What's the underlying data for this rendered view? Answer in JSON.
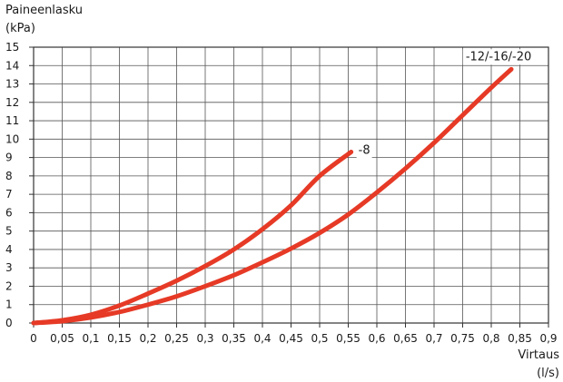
{
  "chart_data": {
    "type": "line",
    "ylabel_lines": [
      "Paineenlasku",
      "(kPa)"
    ],
    "xlabel_lines": [
      "Virtaus",
      "(l/s)"
    ],
    "xlim": [
      0,
      0.9
    ],
    "ylim": [
      0,
      15
    ],
    "x_ticks": [
      "0",
      "0,05",
      "0,1",
      "0,15",
      "0,2",
      "0,25",
      "0,3",
      "0,35",
      "0,4",
      "0,45",
      "0,5",
      "0,55",
      "0,6",
      "0,65",
      "0,7",
      "0,75",
      "0,8",
      "0,85",
      "0,9"
    ],
    "x_tick_values": [
      0,
      0.05,
      0.1,
      0.15,
      0.2,
      0.25,
      0.3,
      0.35,
      0.4,
      0.45,
      0.5,
      0.55,
      0.6,
      0.65,
      0.7,
      0.75,
      0.8,
      0.85,
      0.9
    ],
    "y_ticks": [
      "0",
      "1",
      "2",
      "3",
      "4",
      "5",
      "6",
      "7",
      "8",
      "9",
      "10",
      "11",
      "12",
      "13",
      "14",
      "15"
    ],
    "y_tick_values": [
      0,
      1,
      2,
      3,
      4,
      5,
      6,
      7,
      8,
      9,
      10,
      11,
      12,
      13,
      14,
      15
    ],
    "grid": true,
    "series": [
      {
        "name": "-8",
        "color": "#e63a26",
        "x": [
          0,
          0.05,
          0.1,
          0.15,
          0.2,
          0.25,
          0.3,
          0.35,
          0.4,
          0.45,
          0.5,
          0.555
        ],
        "y": [
          0,
          0.15,
          0.45,
          0.95,
          1.6,
          2.3,
          3.1,
          4.0,
          5.1,
          6.4,
          8.0,
          9.3
        ]
      },
      {
        "name": "-12/-16/-20",
        "color": "#e63a26",
        "x": [
          0,
          0.05,
          0.1,
          0.15,
          0.2,
          0.25,
          0.3,
          0.35,
          0.4,
          0.45,
          0.5,
          0.55,
          0.6,
          0.65,
          0.7,
          0.75,
          0.8,
          0.835
        ],
        "y": [
          0,
          0.1,
          0.3,
          0.6,
          1.0,
          1.45,
          2.0,
          2.6,
          3.3,
          4.05,
          4.9,
          5.9,
          7.1,
          8.4,
          9.8,
          11.3,
          12.8,
          13.8
        ]
      }
    ]
  }
}
